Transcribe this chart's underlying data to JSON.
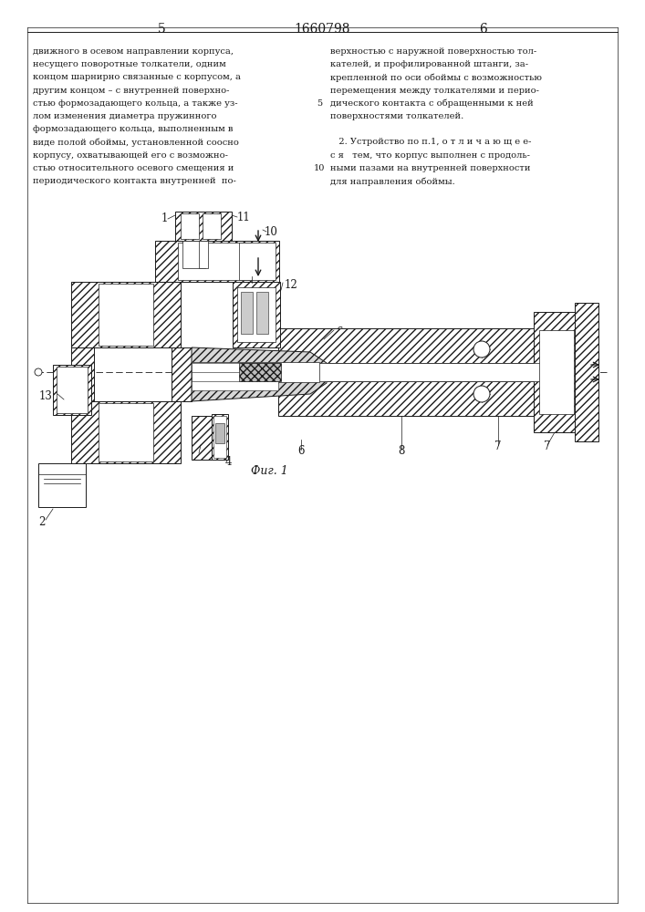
{
  "patent_number": "1660798",
  "page_left": "5",
  "page_right": "6",
  "bg_color": "#ffffff",
  "line_color": "#1a1a1a",
  "left_text_lines": [
    "движного в осевом направлении корпуса,",
    "несущего поворотные толкатели, одним",
    "концом шарнирно связанные с корпусом, а",
    "другим концом – с внутренней поверхно-",
    "стью формозадающего кольца, а также уз-",
    "лом изменения диаметра пружинного",
    "формозадающего кольца, выполненным в",
    "виде полой обоймы, установленной соосно",
    "корпусу, охватывающей его с возможно-",
    "стью относительного осевого смещения и",
    "периодического контакта внутренней  по-"
  ],
  "right_text_lines": [
    "верхностью с наружной поверхностью тол-",
    "кателей, и профилированной штанги, за-",
    "крепленной по оси обоймы с возможностью",
    "перемещения между толкателями и перио-",
    "дического контакта с обращенными к ней",
    "поверхностями толкателей.",
    "",
    "   2. Устройство по п.1, о т л и ч а ю щ е е-",
    "с я   тем, что корпус выполнен с продоль-",
    "ными пазами на внутренней поверхности",
    "для направления обоймы."
  ],
  "fig_label": "Фиг. 1"
}
